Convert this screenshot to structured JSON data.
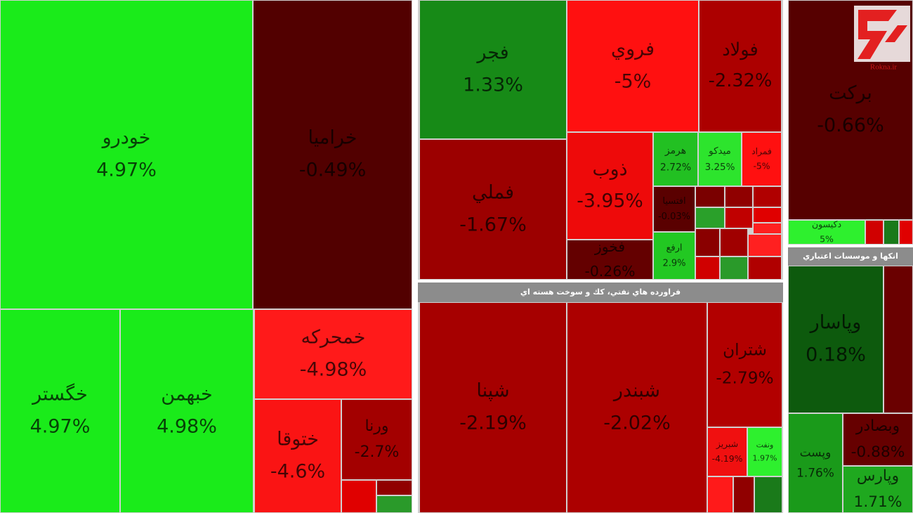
{
  "chart_data": {
    "type": "treemap",
    "tiles": [
      {
        "name": "خودرو",
        "value": 4.97,
        "value_label": "4.97%",
        "color": "#1aeb1a"
      },
      {
        "name": "خراميا",
        "value": -0.49,
        "value_label": "-0.49%",
        "color": "#520000"
      },
      {
        "name": "خگستر",
        "value": 4.97,
        "value_label": "4.97%",
        "color": "#1aeb1a"
      },
      {
        "name": "خبهمن",
        "value": 4.98,
        "value_label": "4.98%",
        "color": "#1aeb1a"
      },
      {
        "name": "خمحرکه",
        "value": -4.98,
        "value_label": "-4.98%",
        "color": "#ff1a1a"
      },
      {
        "name": "ختوقا",
        "value": -4.6,
        "value_label": "-4.6%",
        "color": "#fa1414"
      },
      {
        "name": "ورنا",
        "value": -2.7,
        "value_label": "-2.7%",
        "color": "#a30000"
      },
      {
        "name": "فجر",
        "value": 1.33,
        "value_label": "1.33%",
        "color": "#178a17"
      },
      {
        "name": "فملي",
        "value": -1.67,
        "value_label": "-1.67%",
        "color": "#9c0000"
      },
      {
        "name": "فروي",
        "value": -5,
        "value_label": "-5%",
        "color": "#ff1010"
      },
      {
        "name": "فولاد",
        "value": -2.32,
        "value_label": "-2.32%",
        "color": "#ac0000"
      },
      {
        "name": "ذوب",
        "value": -3.95,
        "value_label": "-3.95%",
        "color": "#ee0a0a"
      },
      {
        "name": "فخوز",
        "value": -0.26,
        "value_label": "-0.26%",
        "color": "#640000"
      },
      {
        "name": "هرمز",
        "value": 2.72,
        "value_label": "2.72%",
        "color": "#22c022"
      },
      {
        "name": "ميدکو",
        "value": 3.25,
        "value_label": "3.25%",
        "color": "#2de42d"
      },
      {
        "name": "فمراد",
        "value": -5,
        "value_label": "-5%",
        "color": "#ff1010"
      },
      {
        "name": "افتسيا",
        "value": -0.03,
        "value_label": "-0.03%",
        "color": "#5a0000"
      },
      {
        "name": "ارفع",
        "value": 2.9,
        "value_label": "2.9%",
        "color": "#22c822"
      },
      {
        "name": "شپنا",
        "value": -2.19,
        "value_label": "-2.19%",
        "color": "#a60000"
      },
      {
        "name": "شبندر",
        "value": -2.02,
        "value_label": "-2.02%",
        "color": "#ac0000"
      },
      {
        "name": "شتران",
        "value": -2.79,
        "value_label": "-2.79%",
        "color": "#b20000"
      },
      {
        "name": "شبريز",
        "value": -4.19,
        "value_label": "-4.19%",
        "color": "#f01010"
      },
      {
        "name": "ونفت",
        "value": 1.97,
        "value_label": "1.97%",
        "color": "#2ef02e"
      },
      {
        "name": "برکت",
        "value": -0.66,
        "value_label": "-0.66%",
        "color": "#560000"
      },
      {
        "name": "دکيسون",
        "value": 5,
        "value_label": "5%",
        "color": "#2ef02e"
      },
      {
        "name": "وپاسار",
        "value": 0.18,
        "value_label": "0.18%",
        "color": "#0d5a0d"
      },
      {
        "name": "وپست",
        "value": 1.76,
        "value_label": "1.76%",
        "color": "#1a9a1a"
      },
      {
        "name": "وبصادر",
        "value": -0.88,
        "value_label": "-0.88%",
        "color": "#660000"
      },
      {
        "name": "وپارس",
        "value": 1.71,
        "value_label": "1.71%",
        "color": "#1fa81f"
      }
    ],
    "headers": [
      "فراورده هاي نفتي، كك و سوخت هسته اي",
      "انكها و موسسات اعتباري"
    ],
    "watermark": "Rokna.ir"
  }
}
